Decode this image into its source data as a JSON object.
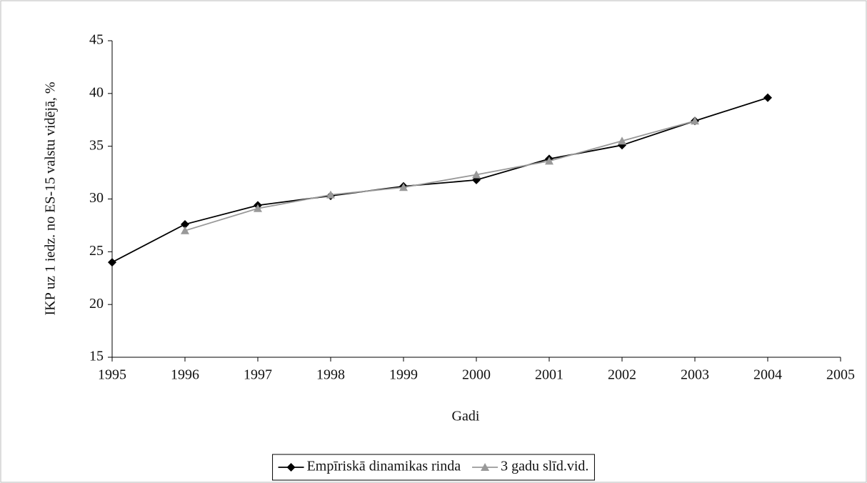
{
  "chart_data": {
    "type": "line",
    "x_label": "Gadi",
    "y_label": "IKP uz 1 iedz. no ES-15 valstu vidējā, %",
    "x": [
      1995,
      1996,
      1997,
      1998,
      1999,
      2000,
      2001,
      2002,
      2003,
      2004
    ],
    "series": [
      {
        "name": "Empīriskā dinamikas rinda",
        "color": "#000000",
        "marker": "diamond",
        "values": [
          24.0,
          27.6,
          29.4,
          30.3,
          31.2,
          31.8,
          33.8,
          35.1,
          37.4,
          39.6
        ]
      },
      {
        "name": "3 gadu slīd.vid.",
        "color": "#999999",
        "marker": "triangle",
        "values": [
          null,
          27.0,
          29.1,
          30.4,
          31.1,
          32.3,
          33.6,
          35.5,
          37.4,
          null
        ]
      }
    ],
    "xlim": [
      1995,
      2005
    ],
    "xticks": [
      1995,
      1996,
      1997,
      1998,
      1999,
      2000,
      2001,
      2002,
      2003,
      2004,
      2005
    ],
    "ylim": [
      15,
      45
    ],
    "yticks": [
      15,
      20,
      25,
      30,
      35,
      40,
      45
    ],
    "grid": false,
    "legend": "bottom"
  }
}
